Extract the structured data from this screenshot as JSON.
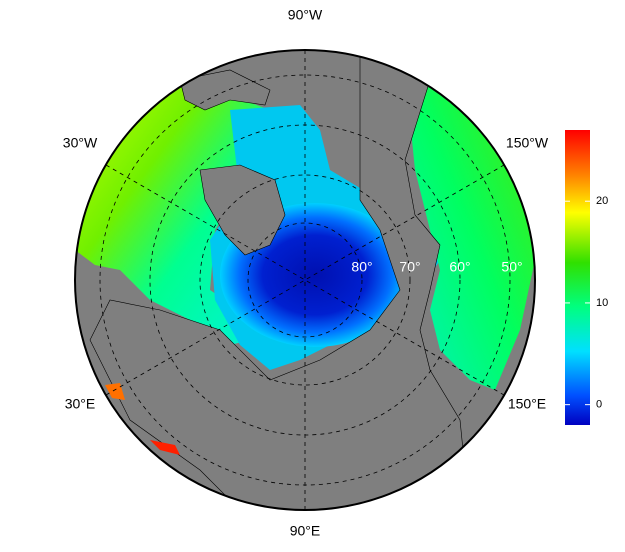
{
  "map": {
    "lon_labels": [
      "90°W",
      "30°W",
      "150°W",
      "30°E",
      "150°E",
      "90°E"
    ],
    "lat_labels": [
      "80°",
      "70°",
      "60°",
      "50°"
    ],
    "colorbar": {
      "lim": [
        -2,
        27
      ],
      "ticks": [
        0,
        10,
        20
      ]
    }
  }
}
